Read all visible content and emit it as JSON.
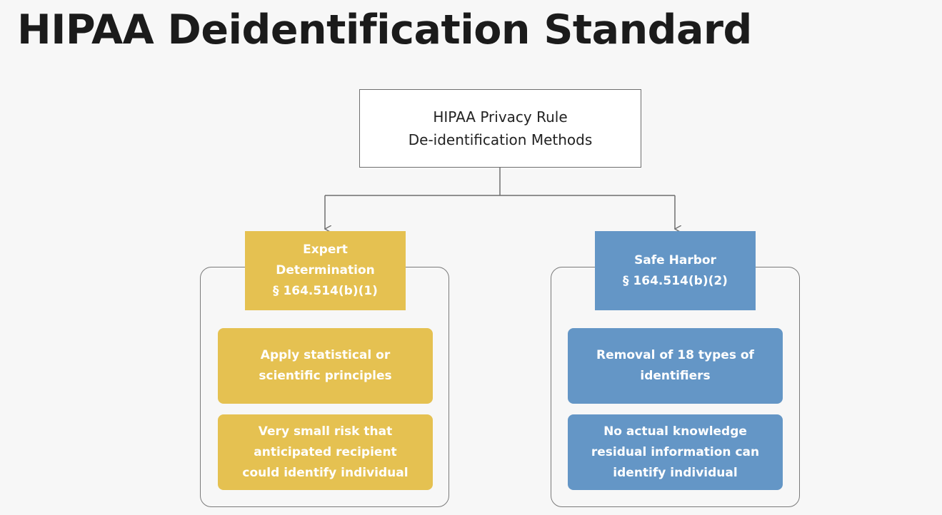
{
  "title": "HIPAA Deidentification Standard",
  "root": {
    "lines": [
      "HIPAA Privacy Rule",
      "De-identification Methods"
    ]
  },
  "expert": {
    "header_lines": [
      "Expert",
      "Determination",
      "§ 164.514(b)(1)"
    ],
    "card1_lines": [
      "Apply statistical or",
      "scientific principles"
    ],
    "card2_lines": [
      "Very small risk that",
      "anticipated recipient",
      "could identify individual"
    ]
  },
  "safe_harbor": {
    "header_lines": [
      "Safe Harbor",
      "§ 164.514(b)(2)"
    ],
    "card1_lines": [
      "Removal of 18 types of",
      "identifiers"
    ],
    "card2_lines": [
      "No actual knowledge",
      "residual information can",
      "identify individual"
    ]
  },
  "colors": {
    "gold": "#e5c151",
    "blue": "#6496c6",
    "title": "#1b1b1b",
    "background": "#f7f7f7"
  }
}
